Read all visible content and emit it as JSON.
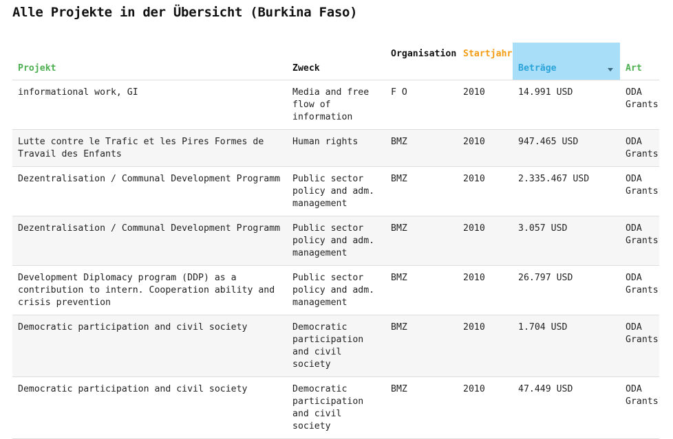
{
  "page": {
    "title": "Alle Projekte in der Übersicht (Burkina Faso)"
  },
  "colors": {
    "projekt_header": "#4caf50",
    "startjahr_header": "#f39c12",
    "betraege_header": "#2aa3d9",
    "betraege_header_bg": "#a8def7",
    "art_header": "#4caf50",
    "zweck_header": "#111111",
    "organisation_header": "#111111"
  },
  "table": {
    "headers": {
      "projekt": "Projekt",
      "zweck": "Zweck",
      "organisation": "Organisation",
      "startjahr": "Startjahr",
      "betraege": "Beträge",
      "art": "Art"
    },
    "sort_icon": "chevron-down-icon",
    "rows": [
      {
        "projekt": "informational work, GI",
        "zweck": "Media and free flow of information",
        "organisation": "F O",
        "startjahr": "2010",
        "betrag": "14.991 USD",
        "art": "ODA Grants"
      },
      {
        "projekt": "Lutte contre le Trafic et les Pires Formes de Travail des Enfants",
        "zweck": "Human rights",
        "organisation": "BMZ",
        "startjahr": "2010",
        "betrag": "947.465 USD",
        "art": "ODA Grants"
      },
      {
        "projekt": "Dezentralisation / Communal Development Programm",
        "zweck": "Public sector policy and adm. management",
        "organisation": "BMZ",
        "startjahr": "2010",
        "betrag": "2.335.467 USD",
        "art": "ODA Grants"
      },
      {
        "projekt": "Dezentralisation / Communal Development Programm",
        "zweck": "Public sector policy and adm. management",
        "organisation": "BMZ",
        "startjahr": "2010",
        "betrag": "3.057 USD",
        "art": "ODA Grants"
      },
      {
        "projekt": "Development Diplomacy program (DDP) as a contribution to intern. Cooperation ability and crisis prevention",
        "zweck": "Public sector policy and adm. management",
        "organisation": "BMZ",
        "startjahr": "2010",
        "betrag": "26.797 USD",
        "art": "ODA Grants"
      },
      {
        "projekt": "Democratic participation and civil society",
        "zweck": "Democratic participation and civil society",
        "organisation": "BMZ",
        "startjahr": "2010",
        "betrag": "1.704 USD",
        "art": "ODA Grants"
      },
      {
        "projekt": "Democratic participation and civil society",
        "zweck": "Democratic participation and civil society",
        "organisation": "BMZ",
        "startjahr": "2010",
        "betrag": "47.449 USD",
        "art": "ODA Grants"
      }
    ]
  }
}
